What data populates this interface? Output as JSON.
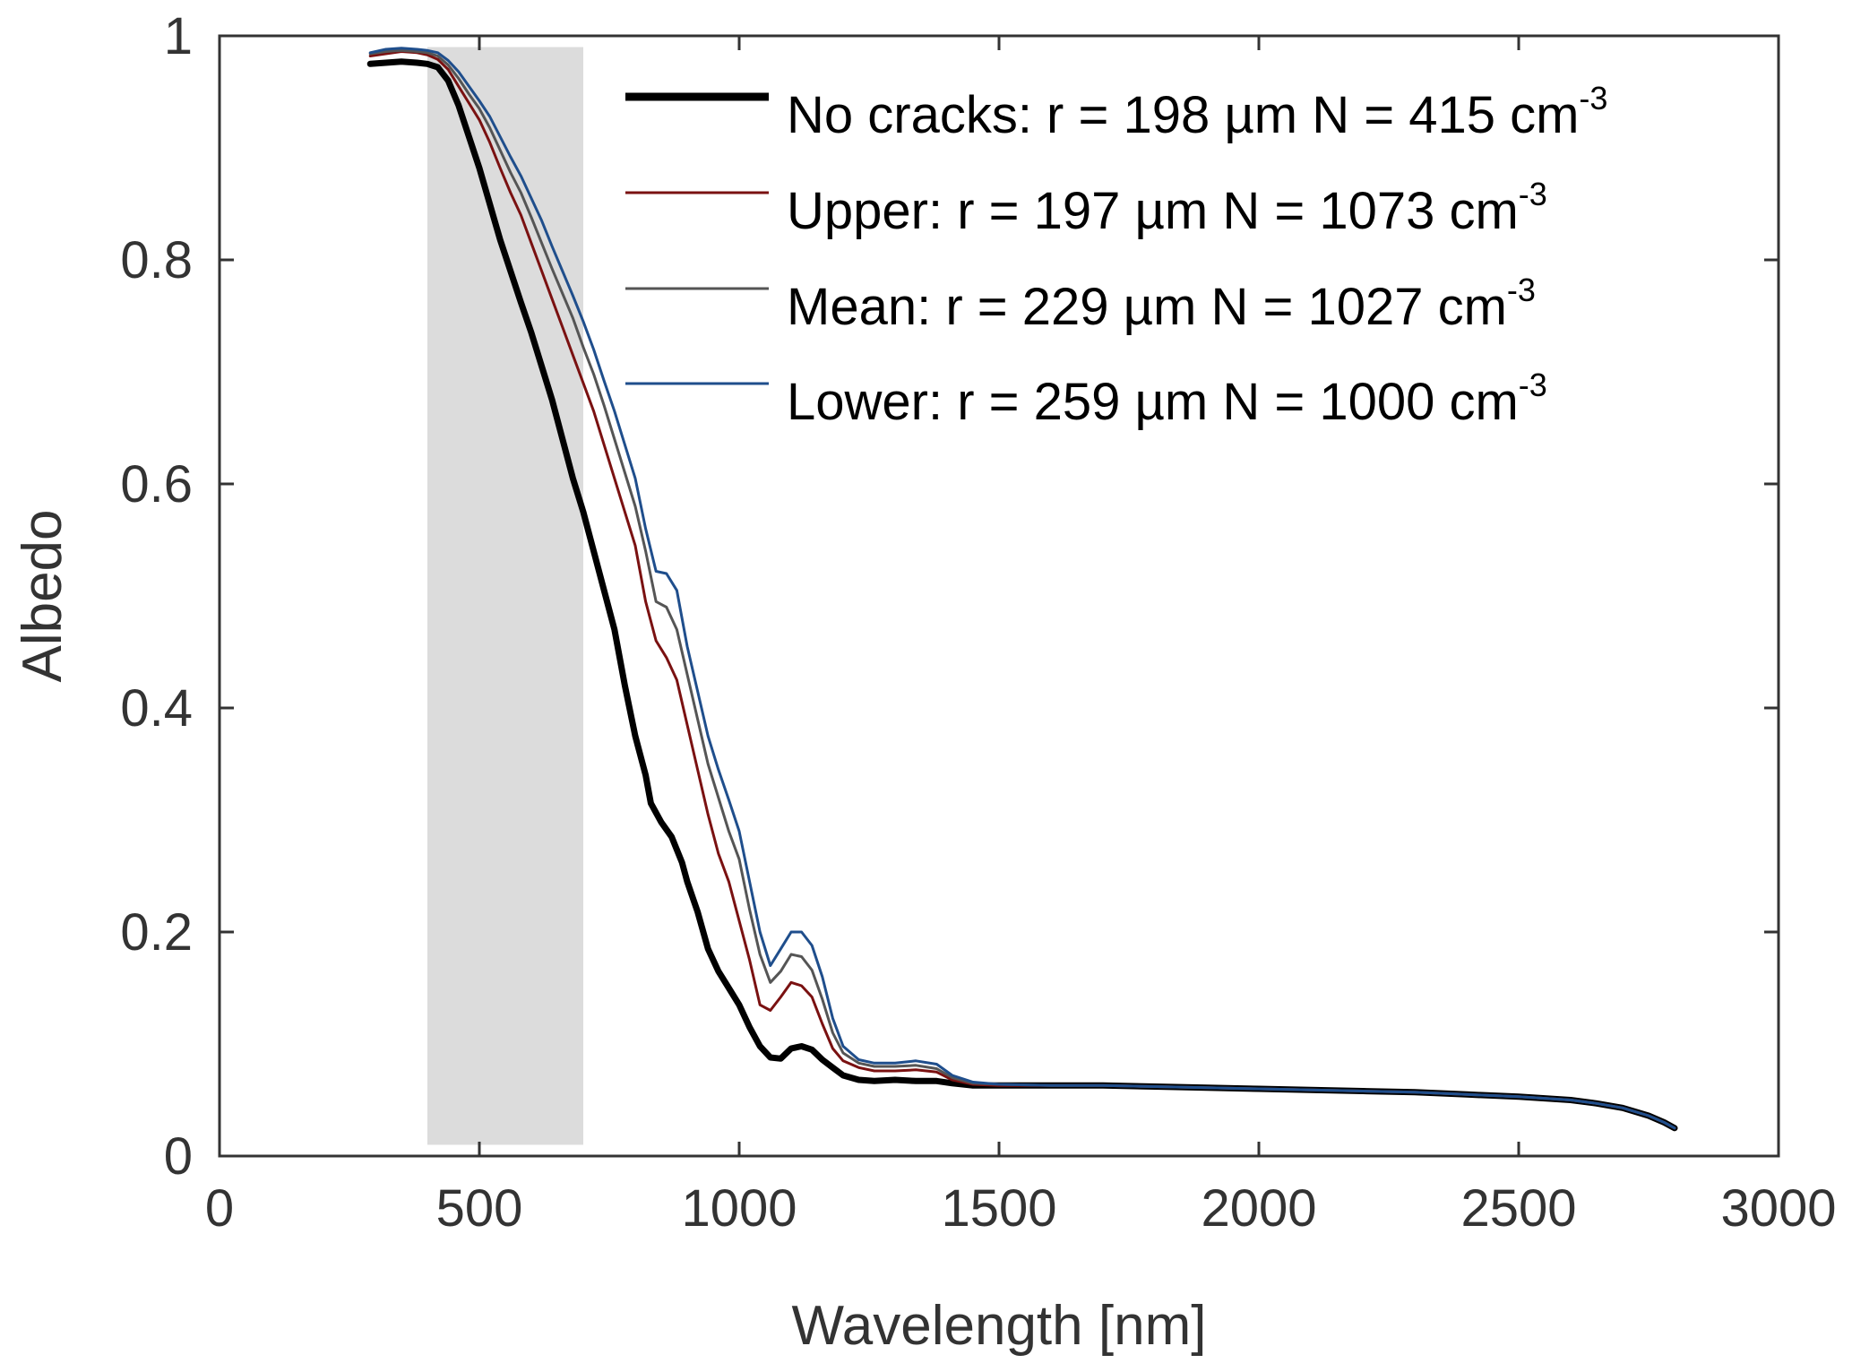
{
  "chart_data": {
    "type": "line",
    "xlabel": "Wavelength [nm]",
    "ylabel": "Albedo",
    "xlim": [
      0,
      3000
    ],
    "ylim": [
      0,
      1
    ],
    "xticks": [
      "0",
      "500",
      "1000",
      "1500",
      "2000",
      "2500",
      "3000"
    ],
    "yticks": [
      "0",
      "0.2",
      "0.4",
      "0.6",
      "0.8",
      "1"
    ],
    "grid": false,
    "legend_position": "top-right",
    "shaded_region": {
      "x": [
        400,
        700
      ],
      "color": "#dcdcdc"
    },
    "legend": [
      {
        "text": "No cracks: r = 198 µm N = 415 cm",
        "sup": "-3"
      },
      {
        "text": "Upper: r = 197 µm N = 1073 cm",
        "sup": "-3"
      },
      {
        "text": "Mean: r = 229 µm N = 1027 cm",
        "sup": "-3"
      },
      {
        "text": "Lower: r = 259 µm N = 1000 cm",
        "sup": "-3"
      }
    ],
    "series": [
      {
        "name": "No cracks",
        "color": "#000000",
        "width": 7,
        "points": [
          [
            290,
            0.975
          ],
          [
            320,
            0.976
          ],
          [
            350,
            0.977
          ],
          [
            380,
            0.976
          ],
          [
            400,
            0.975
          ],
          [
            420,
            0.972
          ],
          [
            440,
            0.96
          ],
          [
            460,
            0.938
          ],
          [
            480,
            0.91
          ],
          [
            500,
            0.882
          ],
          [
            520,
            0.85
          ],
          [
            540,
            0.818
          ],
          [
            560,
            0.79
          ],
          [
            580,
            0.762
          ],
          [
            600,
            0.735
          ],
          [
            620,
            0.705
          ],
          [
            640,
            0.675
          ],
          [
            660,
            0.64
          ],
          [
            680,
            0.605
          ],
          [
            700,
            0.575
          ],
          [
            720,
            0.54
          ],
          [
            740,
            0.505
          ],
          [
            760,
            0.47
          ],
          [
            780,
            0.42
          ],
          [
            800,
            0.375
          ],
          [
            820,
            0.34
          ],
          [
            830,
            0.315
          ],
          [
            850,
            0.298
          ],
          [
            870,
            0.285
          ],
          [
            890,
            0.262
          ],
          [
            900,
            0.245
          ],
          [
            920,
            0.218
          ],
          [
            940,
            0.185
          ],
          [
            960,
            0.165
          ],
          [
            980,
            0.15
          ],
          [
            1000,
            0.135
          ],
          [
            1020,
            0.115
          ],
          [
            1040,
            0.098
          ],
          [
            1060,
            0.088
          ],
          [
            1080,
            0.087
          ],
          [
            1100,
            0.096
          ],
          [
            1120,
            0.098
          ],
          [
            1140,
            0.095
          ],
          [
            1160,
            0.086
          ],
          [
            1180,
            0.079
          ],
          [
            1200,
            0.072
          ],
          [
            1230,
            0.068
          ],
          [
            1260,
            0.067
          ],
          [
            1300,
            0.068
          ],
          [
            1340,
            0.067
          ],
          [
            1380,
            0.067
          ],
          [
            1410,
            0.065
          ],
          [
            1450,
            0.063
          ],
          [
            1500,
            0.063
          ],
          [
            1600,
            0.063
          ],
          [
            1700,
            0.063
          ],
          [
            1800,
            0.062
          ],
          [
            1900,
            0.061
          ],
          [
            2000,
            0.06
          ],
          [
            2100,
            0.059
          ],
          [
            2200,
            0.058
          ],
          [
            2300,
            0.057
          ],
          [
            2400,
            0.055
          ],
          [
            2500,
            0.053
          ],
          [
            2600,
            0.05
          ],
          [
            2650,
            0.047
          ],
          [
            2700,
            0.043
          ],
          [
            2750,
            0.036
          ],
          [
            2780,
            0.03
          ],
          [
            2800,
            0.025
          ]
        ]
      },
      {
        "name": "Upper",
        "color": "#7a1111",
        "width": 3,
        "points": [
          [
            290,
            0.982
          ],
          [
            320,
            0.984
          ],
          [
            350,
            0.986
          ],
          [
            380,
            0.985
          ],
          [
            400,
            0.983
          ],
          [
            420,
            0.979
          ],
          [
            440,
            0.97
          ],
          [
            460,
            0.955
          ],
          [
            480,
            0.94
          ],
          [
            500,
            0.925
          ],
          [
            520,
            0.905
          ],
          [
            540,
            0.882
          ],
          [
            560,
            0.86
          ],
          [
            580,
            0.84
          ],
          [
            600,
            0.815
          ],
          [
            620,
            0.79
          ],
          [
            640,
            0.765
          ],
          [
            660,
            0.74
          ],
          [
            680,
            0.715
          ],
          [
            700,
            0.69
          ],
          [
            720,
            0.665
          ],
          [
            740,
            0.635
          ],
          [
            760,
            0.605
          ],
          [
            780,
            0.575
          ],
          [
            800,
            0.545
          ],
          [
            820,
            0.495
          ],
          [
            840,
            0.46
          ],
          [
            860,
            0.445
          ],
          [
            880,
            0.425
          ],
          [
            900,
            0.385
          ],
          [
            920,
            0.345
          ],
          [
            940,
            0.305
          ],
          [
            960,
            0.27
          ],
          [
            980,
            0.245
          ],
          [
            1000,
            0.21
          ],
          [
            1020,
            0.175
          ],
          [
            1040,
            0.135
          ],
          [
            1060,
            0.13
          ],
          [
            1080,
            0.142
          ],
          [
            1100,
            0.155
          ],
          [
            1120,
            0.152
          ],
          [
            1140,
            0.142
          ],
          [
            1160,
            0.118
          ],
          [
            1180,
            0.096
          ],
          [
            1200,
            0.085
          ],
          [
            1230,
            0.079
          ],
          [
            1260,
            0.076
          ],
          [
            1300,
            0.076
          ],
          [
            1340,
            0.077
          ],
          [
            1380,
            0.075
          ],
          [
            1410,
            0.068
          ],
          [
            1450,
            0.064
          ],
          [
            1500,
            0.063
          ],
          [
            1600,
            0.063
          ],
          [
            1700,
            0.063
          ],
          [
            1800,
            0.062
          ],
          [
            1900,
            0.061
          ],
          [
            2000,
            0.06
          ],
          [
            2100,
            0.059
          ],
          [
            2200,
            0.058
          ],
          [
            2300,
            0.057
          ],
          [
            2400,
            0.055
          ],
          [
            2500,
            0.053
          ],
          [
            2600,
            0.05
          ],
          [
            2650,
            0.047
          ],
          [
            2700,
            0.043
          ],
          [
            2750,
            0.036
          ],
          [
            2780,
            0.03
          ],
          [
            2800,
            0.025
          ]
        ]
      },
      {
        "name": "Mean",
        "color": "#555555",
        "width": 3,
        "points": [
          [
            290,
            0.984
          ],
          [
            320,
            0.986
          ],
          [
            350,
            0.987
          ],
          [
            380,
            0.986
          ],
          [
            400,
            0.985
          ],
          [
            420,
            0.982
          ],
          [
            440,
            0.974
          ],
          [
            460,
            0.962
          ],
          [
            480,
            0.948
          ],
          [
            500,
            0.935
          ],
          [
            520,
            0.918
          ],
          [
            540,
            0.898
          ],
          [
            560,
            0.878
          ],
          [
            580,
            0.86
          ],
          [
            600,
            0.838
          ],
          [
            620,
            0.815
          ],
          [
            640,
            0.792
          ],
          [
            660,
            0.77
          ],
          [
            680,
            0.748
          ],
          [
            700,
            0.722
          ],
          [
            720,
            0.698
          ],
          [
            740,
            0.67
          ],
          [
            760,
            0.64
          ],
          [
            780,
            0.61
          ],
          [
            800,
            0.58
          ],
          [
            820,
            0.54
          ],
          [
            840,
            0.495
          ],
          [
            860,
            0.49
          ],
          [
            880,
            0.47
          ],
          [
            900,
            0.43
          ],
          [
            920,
            0.39
          ],
          [
            940,
            0.35
          ],
          [
            960,
            0.32
          ],
          [
            980,
            0.29
          ],
          [
            1000,
            0.265
          ],
          [
            1020,
            0.22
          ],
          [
            1040,
            0.18
          ],
          [
            1060,
            0.155
          ],
          [
            1080,
            0.165
          ],
          [
            1100,
            0.18
          ],
          [
            1120,
            0.178
          ],
          [
            1140,
            0.166
          ],
          [
            1160,
            0.14
          ],
          [
            1180,
            0.11
          ],
          [
            1200,
            0.092
          ],
          [
            1230,
            0.083
          ],
          [
            1260,
            0.08
          ],
          [
            1300,
            0.08
          ],
          [
            1340,
            0.081
          ],
          [
            1380,
            0.078
          ],
          [
            1410,
            0.07
          ],
          [
            1450,
            0.065
          ],
          [
            1500,
            0.064
          ],
          [
            1600,
            0.063
          ],
          [
            1700,
            0.063
          ],
          [
            1800,
            0.062
          ],
          [
            1900,
            0.061
          ],
          [
            2000,
            0.06
          ],
          [
            2100,
            0.059
          ],
          [
            2200,
            0.058
          ],
          [
            2300,
            0.057
          ],
          [
            2400,
            0.055
          ],
          [
            2500,
            0.053
          ],
          [
            2600,
            0.05
          ],
          [
            2650,
            0.047
          ],
          [
            2700,
            0.043
          ],
          [
            2750,
            0.036
          ],
          [
            2780,
            0.03
          ],
          [
            2800,
            0.025
          ]
        ]
      },
      {
        "name": "Lower",
        "color": "#1f4e8c",
        "width": 3,
        "points": [
          [
            290,
            0.985
          ],
          [
            320,
            0.988
          ],
          [
            350,
            0.989
          ],
          [
            380,
            0.988
          ],
          [
            400,
            0.987
          ],
          [
            420,
            0.985
          ],
          [
            440,
            0.978
          ],
          [
            460,
            0.968
          ],
          [
            480,
            0.955
          ],
          [
            500,
            0.942
          ],
          [
            520,
            0.928
          ],
          [
            540,
            0.91
          ],
          [
            560,
            0.892
          ],
          [
            580,
            0.875
          ],
          [
            600,
            0.855
          ],
          [
            620,
            0.835
          ],
          [
            640,
            0.812
          ],
          [
            660,
            0.79
          ],
          [
            680,
            0.768
          ],
          [
            700,
            0.745
          ],
          [
            720,
            0.72
          ],
          [
            740,
            0.692
          ],
          [
            760,
            0.665
          ],
          [
            780,
            0.635
          ],
          [
            800,
            0.605
          ],
          [
            820,
            0.56
          ],
          [
            840,
            0.522
          ],
          [
            860,
            0.52
          ],
          [
            880,
            0.505
          ],
          [
            900,
            0.455
          ],
          [
            920,
            0.415
          ],
          [
            940,
            0.375
          ],
          [
            960,
            0.345
          ],
          [
            980,
            0.318
          ],
          [
            1000,
            0.29
          ],
          [
            1020,
            0.245
          ],
          [
            1040,
            0.2
          ],
          [
            1060,
            0.17
          ],
          [
            1080,
            0.185
          ],
          [
            1100,
            0.2
          ],
          [
            1120,
            0.2
          ],
          [
            1140,
            0.188
          ],
          [
            1160,
            0.16
          ],
          [
            1180,
            0.123
          ],
          [
            1200,
            0.098
          ],
          [
            1230,
            0.086
          ],
          [
            1260,
            0.083
          ],
          [
            1300,
            0.083
          ],
          [
            1340,
            0.085
          ],
          [
            1380,
            0.082
          ],
          [
            1410,
            0.072
          ],
          [
            1450,
            0.066
          ],
          [
            1500,
            0.064
          ],
          [
            1600,
            0.063
          ],
          [
            1700,
            0.063
          ],
          [
            1800,
            0.062
          ],
          [
            1900,
            0.061
          ],
          [
            2000,
            0.06
          ],
          [
            2100,
            0.059
          ],
          [
            2200,
            0.058
          ],
          [
            2300,
            0.057
          ],
          [
            2400,
            0.055
          ],
          [
            2500,
            0.053
          ],
          [
            2600,
            0.05
          ],
          [
            2650,
            0.047
          ],
          [
            2700,
            0.043
          ],
          [
            2750,
            0.036
          ],
          [
            2780,
            0.03
          ],
          [
            2800,
            0.025
          ]
        ]
      }
    ]
  }
}
